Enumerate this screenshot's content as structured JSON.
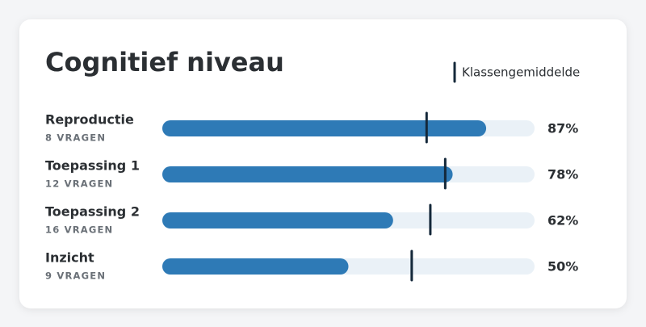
{
  "chart_data": {
    "type": "bar",
    "orientation": "horizontal",
    "title": "Cognitief niveau",
    "categories": [
      "Reproductie",
      "Toepassing 1",
      "Toepassing 2",
      "Inzicht"
    ],
    "category_notes": [
      "8 VRAGEN",
      "12 VRAGEN",
      "16 VRAGEN",
      "9 VRAGEN"
    ],
    "values": [
      87,
      78,
      62,
      50
    ],
    "value_labels": [
      "87%",
      "78%",
      "62%",
      "50%"
    ],
    "color": "#2e7ab6",
    "track_color": "#eaf1f7",
    "xlim": [
      0,
      100
    ],
    "average": {
      "name": "Klassengemiddelde",
      "color": "#14283a",
      "values": [
        71,
        76,
        72,
        67
      ]
    }
  }
}
